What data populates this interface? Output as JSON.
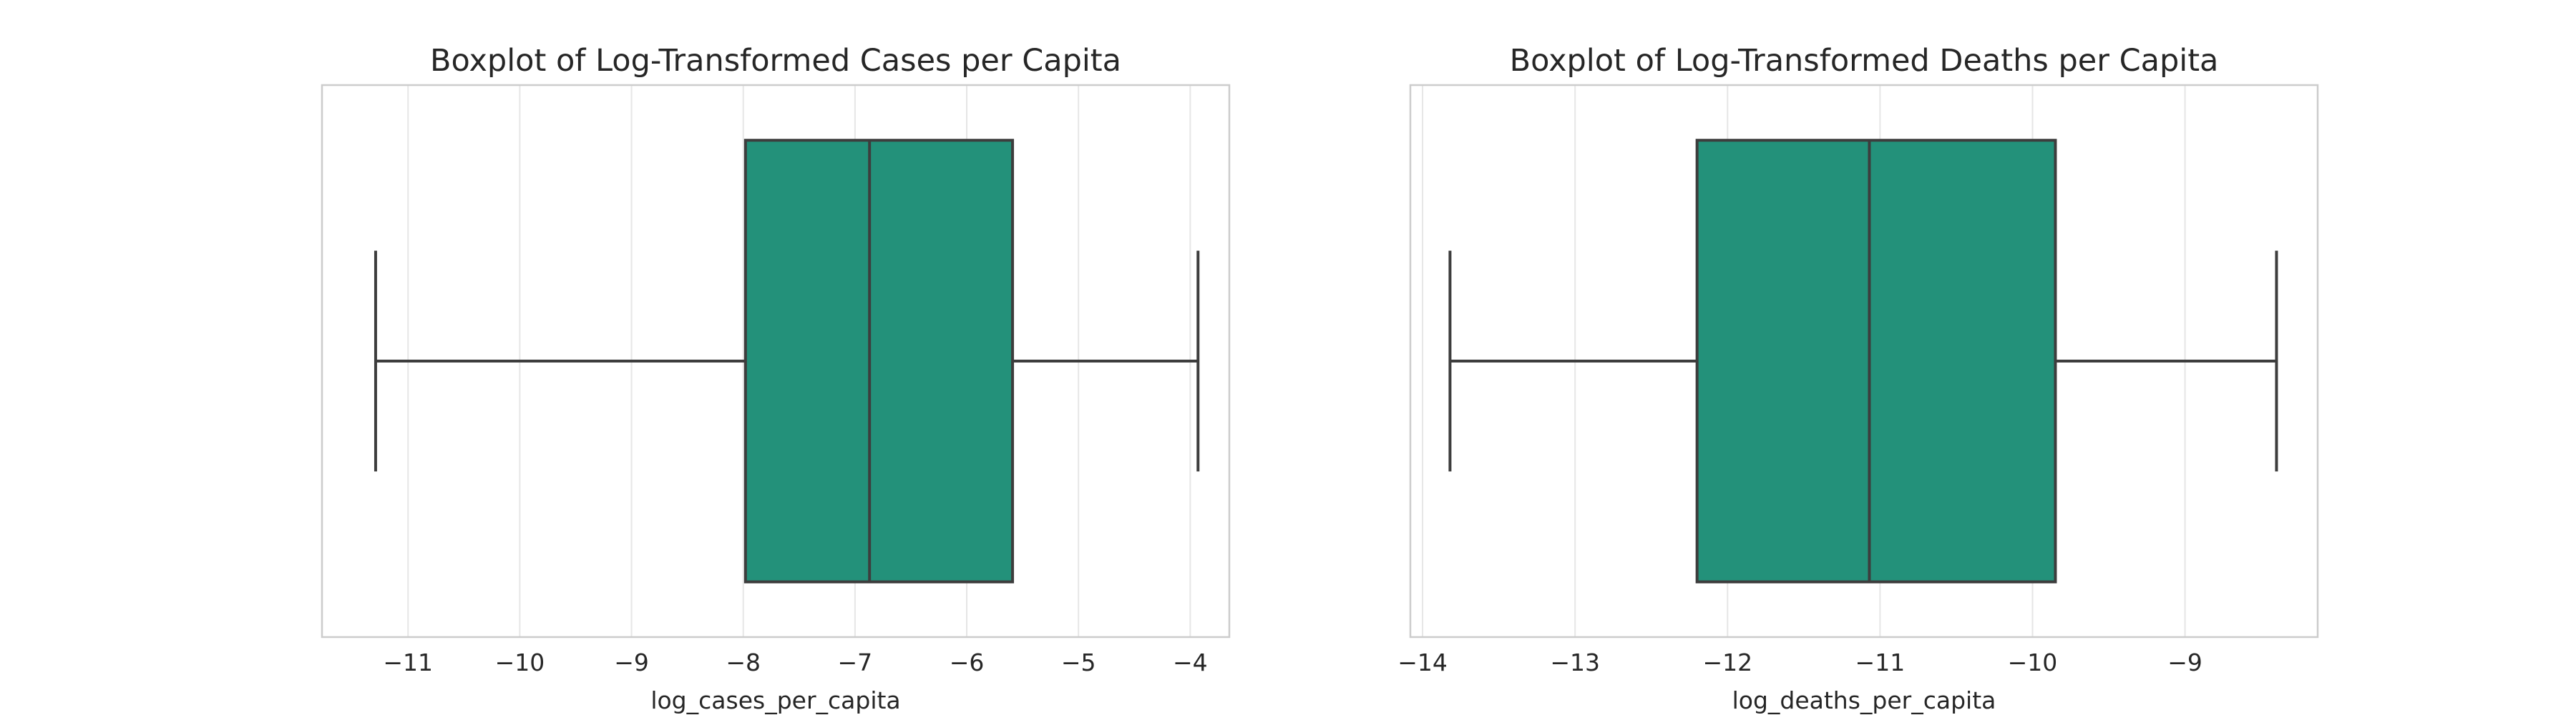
{
  "chart_data": [
    {
      "type": "box",
      "title": "Boxplot of Log-Transformed Cases per Capita",
      "xlabel": "log_cases_per_capita",
      "ylabel": "",
      "xlim": [
        -11.77,
        -3.65
      ],
      "xticks": [
        -11,
        -10,
        -9,
        -8,
        -7,
        -6,
        -5,
        -4
      ],
      "xtick_labels": [
        "−11",
        "−10",
        "−9",
        "−8",
        "−7",
        "−6",
        "−5",
        "−4"
      ],
      "grid": true,
      "box": {
        "whisker_low": -11.29,
        "q1": -7.98,
        "median": -6.87,
        "q3": -5.59,
        "whisker_high": -3.93
      },
      "color": "#23917a"
    },
    {
      "type": "box",
      "title": "Boxplot of Log-Transformed Deaths per Capita",
      "xlabel": "log_deaths_per_capita",
      "ylabel": "",
      "xlim": [
        -14.08,
        -8.13
      ],
      "xticks": [
        -14,
        -13,
        -12,
        -11,
        -10,
        -9
      ],
      "xtick_labels": [
        "−14",
        "−13",
        "−12",
        "−11",
        "−10",
        "−9"
      ],
      "grid": true,
      "box": {
        "whisker_low": -13.82,
        "q1": -12.2,
        "median": -11.07,
        "q3": -9.85,
        "whisker_high": -8.4
      },
      "color": "#23917a"
    }
  ]
}
